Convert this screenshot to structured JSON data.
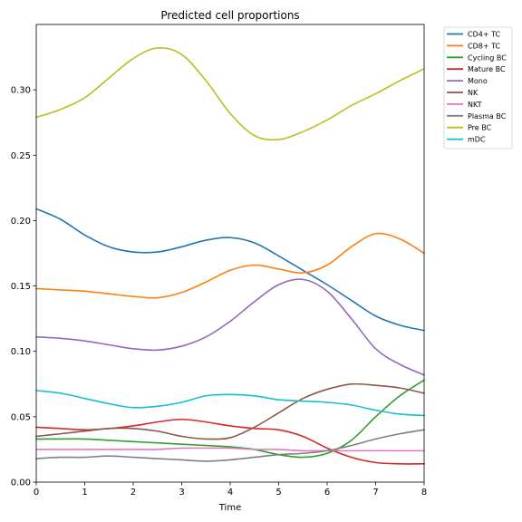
{
  "chart_data": {
    "type": "line",
    "title": "Predicted cell proportions",
    "xlabel": "Time",
    "ylabel": "",
    "xlim": [
      0,
      8
    ],
    "ylim": [
      0,
      0.35
    ],
    "xticks": [
      0,
      1,
      2,
      3,
      4,
      5,
      6,
      7,
      8
    ],
    "yticks": [
      0.0,
      0.05,
      0.1,
      0.15,
      0.2,
      0.25,
      0.3
    ],
    "ytick_labels": [
      "0.00",
      "0.05",
      "0.10",
      "0.15",
      "0.20",
      "0.25",
      "0.30"
    ],
    "grid": false,
    "legend_position": "outside-top-right",
    "x": [
      0,
      0.5,
      1,
      1.5,
      2,
      2.5,
      3,
      3.5,
      4,
      4.5,
      5,
      5.5,
      6,
      6.5,
      7,
      7.5,
      8
    ],
    "series": [
      {
        "name": "CD4+ TC",
        "color": "#1f77b4",
        "values": [
          0.209,
          0.201,
          0.189,
          0.18,
          0.176,
          0.176,
          0.18,
          0.185,
          0.187,
          0.183,
          0.173,
          0.162,
          0.151,
          0.139,
          0.127,
          0.12,
          0.116
        ]
      },
      {
        "name": "CD8+ TC",
        "color": "#ff7f0e",
        "values": [
          0.148,
          0.147,
          0.146,
          0.144,
          0.142,
          0.141,
          0.145,
          0.153,
          0.162,
          0.166,
          0.163,
          0.16,
          0.166,
          0.18,
          0.19,
          0.186,
          0.175
        ]
      },
      {
        "name": "Cycling BC",
        "color": "#2ca02c",
        "values": [
          0.033,
          0.033,
          0.033,
          0.032,
          0.031,
          0.03,
          0.029,
          0.028,
          0.027,
          0.025,
          0.021,
          0.019,
          0.022,
          0.032,
          0.05,
          0.066,
          0.078
        ]
      },
      {
        "name": "Mature BC",
        "color": "#d62728",
        "values": [
          0.042,
          0.041,
          0.04,
          0.041,
          0.043,
          0.046,
          0.048,
          0.046,
          0.043,
          0.041,
          0.04,
          0.035,
          0.026,
          0.019,
          0.015,
          0.014,
          0.014
        ]
      },
      {
        "name": "Mono",
        "color": "#9467bd",
        "values": [
          0.111,
          0.11,
          0.108,
          0.105,
          0.102,
          0.101,
          0.104,
          0.111,
          0.123,
          0.138,
          0.151,
          0.155,
          0.146,
          0.125,
          0.102,
          0.09,
          0.082
        ]
      },
      {
        "name": "NK",
        "color": "#8c564b",
        "values": [
          0.035,
          0.037,
          0.039,
          0.041,
          0.041,
          0.039,
          0.035,
          0.033,
          0.034,
          0.042,
          0.053,
          0.064,
          0.071,
          0.075,
          0.074,
          0.072,
          0.068
        ]
      },
      {
        "name": "NKT",
        "color": "#e377c2",
        "values": [
          0.025,
          0.025,
          0.025,
          0.025,
          0.025,
          0.025,
          0.026,
          0.026,
          0.026,
          0.025,
          0.025,
          0.024,
          0.024,
          0.024,
          0.024,
          0.024,
          0.024
        ]
      },
      {
        "name": "Plasma BC",
        "color": "#7f7f7f",
        "values": [
          0.018,
          0.019,
          0.019,
          0.02,
          0.019,
          0.018,
          0.017,
          0.016,
          0.017,
          0.019,
          0.021,
          0.022,
          0.024,
          0.028,
          0.033,
          0.037,
          0.04
        ]
      },
      {
        "name": "Pre BC",
        "color": "#bcbd22",
        "values": [
          0.279,
          0.285,
          0.294,
          0.309,
          0.324,
          0.332,
          0.327,
          0.307,
          0.282,
          0.265,
          0.262,
          0.268,
          0.277,
          0.288,
          0.297,
          0.307,
          0.316
        ]
      },
      {
        "name": "mDC",
        "color": "#17becf",
        "values": [
          0.07,
          0.068,
          0.064,
          0.06,
          0.057,
          0.058,
          0.061,
          0.066,
          0.067,
          0.066,
          0.063,
          0.062,
          0.061,
          0.059,
          0.055,
          0.052,
          0.051
        ]
      }
    ]
  }
}
